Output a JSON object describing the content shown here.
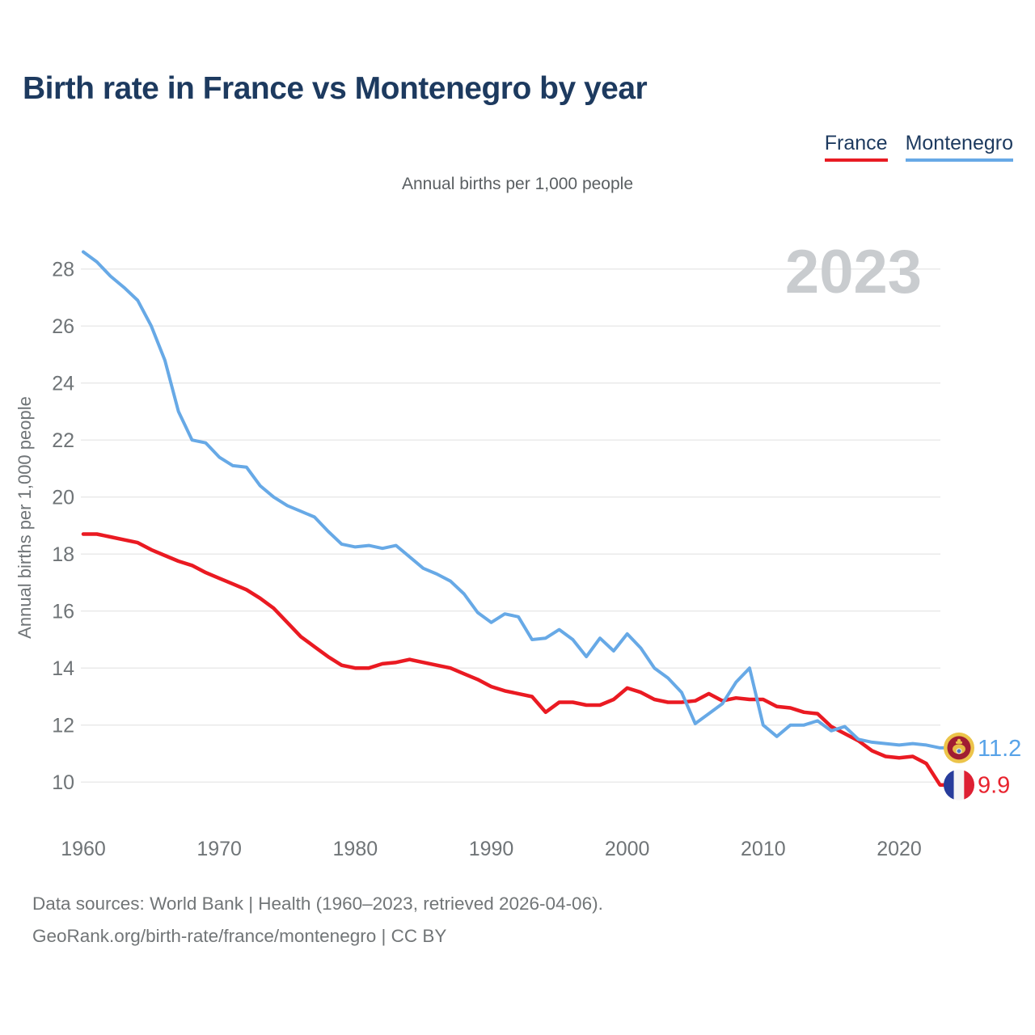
{
  "header": {
    "title": "Birth rate in France vs Montenegro by year"
  },
  "legend": {
    "items": [
      {
        "label": "France",
        "color": "#e81b23"
      },
      {
        "label": "Montenegro",
        "color": "#67a9e6"
      }
    ]
  },
  "subtitle": "Annual births per 1,000 people",
  "watermark": "2023",
  "footer": {
    "line1": "Data sources: World Bank | Health (1960–2023, retrieved 2026-04-06).",
    "line2": "GeoRank.org/birth-rate/france/montenegro | CC BY"
  },
  "chart_data": {
    "type": "line",
    "title": "Birth rate in France vs Montenegro by year",
    "subtitle": "Annual births per 1,000 people",
    "xlabel": "",
    "ylabel": "Annual births per 1,000 people",
    "xticks": [
      1960,
      1970,
      1980,
      1990,
      2000,
      2010,
      2020
    ],
    "yticks": [
      10,
      12,
      14,
      16,
      18,
      20,
      22,
      24,
      26,
      28
    ],
    "xlim": [
      1960,
      2023
    ],
    "ylim": [
      9.4,
      29.3
    ],
    "grid": "horizontal",
    "legend_position": "top-right",
    "watermark": "2023",
    "x": [
      1960,
      1961,
      1962,
      1963,
      1964,
      1965,
      1966,
      1967,
      1968,
      1969,
      1970,
      1971,
      1972,
      1973,
      1974,
      1975,
      1976,
      1977,
      1978,
      1979,
      1980,
      1981,
      1982,
      1983,
      1984,
      1985,
      1986,
      1987,
      1988,
      1989,
      1990,
      1991,
      1992,
      1993,
      1994,
      1995,
      1996,
      1997,
      1998,
      1999,
      2000,
      2001,
      2002,
      2003,
      2004,
      2005,
      2006,
      2007,
      2008,
      2009,
      2010,
      2011,
      2012,
      2013,
      2014,
      2015,
      2016,
      2017,
      2018,
      2019,
      2020,
      2021,
      2022,
      2023
    ],
    "series": [
      {
        "name": "France",
        "color": "#ea1a22",
        "stroke_width": 4.5,
        "end_label": "9.9",
        "end_label_color": "#e8232e",
        "flag": "france-flag",
        "values": [
          18.7,
          18.7,
          18.6,
          18.5,
          18.4,
          18.15,
          17.95,
          17.75,
          17.6,
          17.35,
          17.15,
          16.95,
          16.75,
          16.45,
          16.1,
          15.6,
          15.1,
          14.75,
          14.4,
          14.1,
          14.0,
          14.0,
          14.15,
          14.2,
          14.3,
          14.2,
          14.1,
          14.0,
          13.8,
          13.6,
          13.35,
          13.2,
          13.1,
          13.0,
          12.45,
          12.8,
          12.8,
          12.7,
          12.7,
          12.9,
          13.3,
          13.15,
          12.9,
          12.8,
          12.8,
          12.85,
          13.1,
          12.85,
          12.95,
          12.9,
          12.9,
          12.65,
          12.6,
          12.45,
          12.4,
          11.95,
          11.7,
          11.45,
          11.1,
          10.9,
          10.85,
          10.9,
          10.65,
          9.9
        ]
      },
      {
        "name": "Montenegro",
        "color": "#67a9e6",
        "stroke_width": 4,
        "end_label": "11.2",
        "end_label_color": "#58a3e8",
        "flag": "montenegro-flag",
        "values": [
          28.6,
          28.25,
          27.75,
          27.35,
          26.9,
          26.0,
          24.8,
          23.0,
          22.0,
          21.9,
          21.4,
          21.1,
          21.05,
          20.4,
          20.0,
          19.7,
          19.5,
          19.3,
          18.8,
          18.35,
          18.25,
          18.3,
          18.2,
          18.3,
          17.9,
          17.5,
          17.3,
          17.05,
          16.6,
          15.95,
          15.6,
          15.9,
          15.8,
          15.0,
          15.05,
          15.35,
          15.0,
          14.4,
          15.05,
          14.6,
          15.2,
          14.7,
          14.0,
          13.65,
          13.15,
          12.05,
          12.4,
          12.75,
          13.5,
          14.0,
          12.0,
          11.6,
          12.0,
          12.0,
          12.15,
          11.8,
          11.95,
          11.5,
          11.4,
          11.35,
          11.3,
          11.35,
          11.3,
          11.2
        ]
      }
    ]
  }
}
